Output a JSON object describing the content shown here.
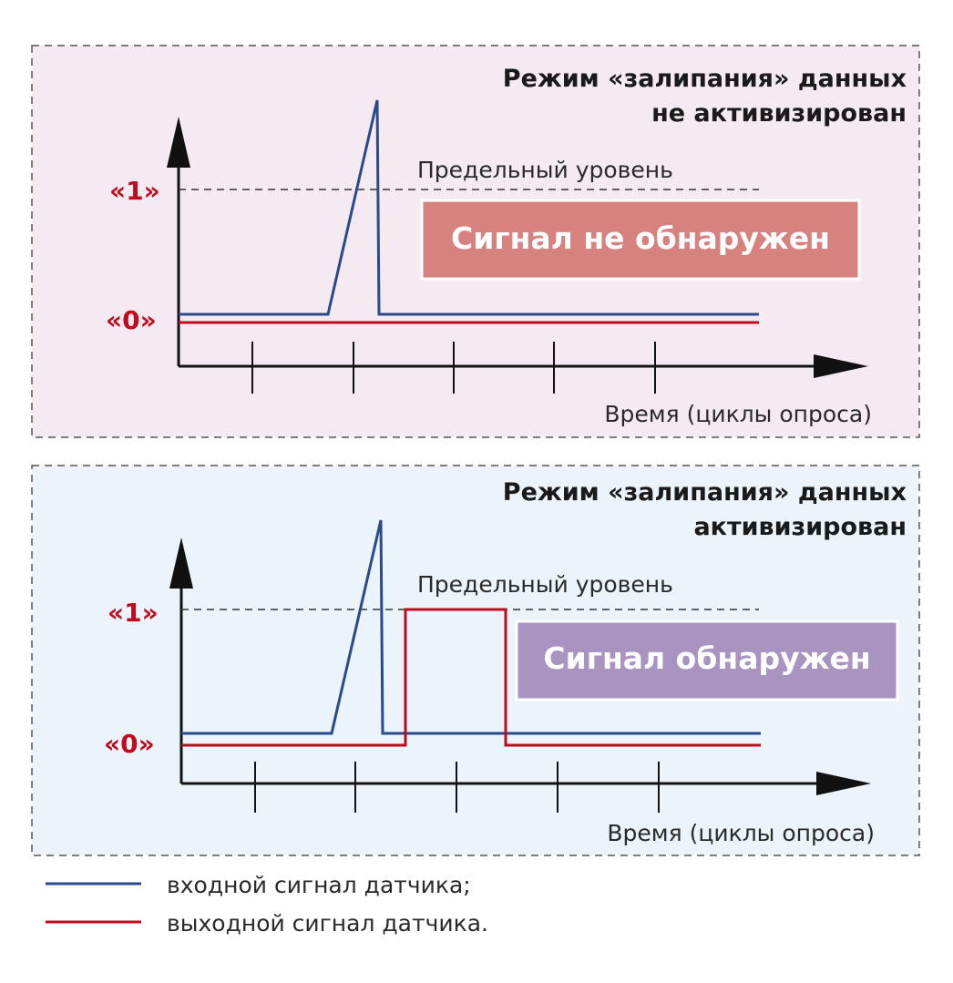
{
  "colors": {
    "input_signal": "#2b4a8b",
    "output_signal": "#c00a1e",
    "panel1_bg": "#f6eaf2",
    "panel2_bg": "#eaf4fa",
    "status_not_detected": "#d88280",
    "status_detected": "#a993c1",
    "axis": "#111111",
    "threshold": "#333333",
    "level_label": "#c00a1e"
  },
  "panels": [
    {
      "title_line1": "Режим «залипания» данных",
      "title_line2": "не активизирован",
      "threshold_label": "Предельный уровень",
      "level_high": "«1»",
      "level_low": "«0»",
      "status": "Сигнал не обнаружен",
      "time_axis": "Время (циклы опроса)"
    },
    {
      "title_line1": "Режим «залипания» данных",
      "title_line2": "активизирован",
      "threshold_label": "Предельный уровень",
      "level_high": "«1»",
      "level_low": "«0»",
      "status": "Сигнал обнаружен",
      "time_axis": "Время (циклы опроса)"
    }
  ],
  "legend": [
    {
      "label": "входной сигнал датчика;",
      "color_key": "input_signal"
    },
    {
      "label": "выходной сигнал датчика.",
      "color_key": "output_signal"
    }
  ]
}
